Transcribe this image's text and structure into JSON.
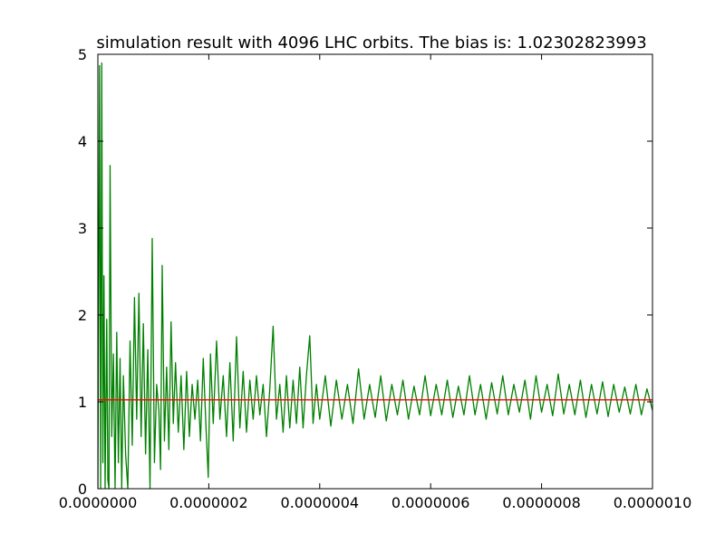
{
  "chart_data": {
    "type": "line",
    "title": "simulation result with 4096 LHC orbits. The bias is: 1.02302823993",
    "xlabel": "",
    "ylabel": "",
    "xlim": [
      0,
      1e-06
    ],
    "ylim": [
      0,
      5
    ],
    "grid": false,
    "legend": "none",
    "x_ticks": [
      0,
      2e-07,
      4e-07,
      6e-07,
      8e-07,
      1e-06
    ],
    "x_tick_labels": [
      "0.0000000",
      "0.0000002",
      "0.0000004",
      "0.0000006",
      "0.0000008",
      "0.0000010"
    ],
    "y_ticks": [
      0,
      1,
      2,
      3,
      4,
      5
    ],
    "y_tick_labels": [
      "0",
      "1",
      "2",
      "3",
      "4",
      "5"
    ],
    "series": [
      {
        "color": "#008000",
        "points": [
          [
            0.0,
            0.0
          ],
          [
            3e-09,
            4.87
          ],
          [
            5e-09,
            0.0
          ],
          [
            7e-09,
            4.9
          ],
          [
            9e-09,
            0.3
          ],
          [
            1.1e-08,
            2.45
          ],
          [
            1.3e-08,
            0.0
          ],
          [
            1.6e-08,
            1.95
          ],
          [
            1.8e-08,
            0.1
          ],
          [
            2e-08,
            0.0
          ],
          [
            2.2e-08,
            3.72
          ],
          [
            2.5e-08,
            0.6
          ],
          [
            2.8e-08,
            1.55
          ],
          [
            3.1e-08,
            0.0
          ],
          [
            3.4e-08,
            1.8
          ],
          [
            3.7e-08,
            0.3
          ],
          [
            4e-08,
            1.5
          ],
          [
            4.3e-08,
            0.0
          ],
          [
            4.6e-08,
            1.3
          ],
          [
            5e-08,
            0.4
          ],
          [
            5.4e-08,
            0.0
          ],
          [
            5.8e-08,
            1.7
          ],
          [
            6.2e-08,
            0.5
          ],
          [
            6.6e-08,
            2.2
          ],
          [
            7e-08,
            0.8
          ],
          [
            7.4e-08,
            2.25
          ],
          [
            7.8e-08,
            0.6
          ],
          [
            8.2e-08,
            1.9
          ],
          [
            8.6e-08,
            0.4
          ],
          [
            9e-08,
            1.6
          ],
          [
            9.4e-08,
            0.0
          ],
          [
            9.8e-08,
            2.88
          ],
          [
            1.02e-07,
            0.3
          ],
          [
            1.06e-07,
            1.2
          ],
          [
            1.1e-07,
            0.9
          ],
          [
            1.13e-07,
            0.22
          ],
          [
            1.16e-07,
            2.57
          ],
          [
            1.2e-07,
            0.55
          ],
          [
            1.24e-07,
            1.4
          ],
          [
            1.28e-07,
            0.45
          ],
          [
            1.32e-07,
            1.92
          ],
          [
            1.36e-07,
            0.75
          ],
          [
            1.4e-07,
            1.45
          ],
          [
            1.45e-07,
            0.65
          ],
          [
            1.5e-07,
            1.3
          ],
          [
            1.55e-07,
            0.45
          ],
          [
            1.6e-07,
            1.35
          ],
          [
            1.65e-07,
            0.6
          ],
          [
            1.7e-07,
            1.2
          ],
          [
            1.75e-07,
            0.8
          ],
          [
            1.8e-07,
            1.25
          ],
          [
            1.85e-07,
            0.55
          ],
          [
            1.9e-07,
            1.5
          ],
          [
            1.95e-07,
            0.7
          ],
          [
            1.99e-07,
            0.13
          ],
          [
            2.03e-07,
            1.55
          ],
          [
            2.08e-07,
            0.75
          ],
          [
            2.14e-07,
            1.7
          ],
          [
            2.2e-07,
            0.8
          ],
          [
            2.26e-07,
            1.3
          ],
          [
            2.32e-07,
            0.6
          ],
          [
            2.38e-07,
            1.45
          ],
          [
            2.44e-07,
            0.55
          ],
          [
            2.5e-07,
            1.75
          ],
          [
            2.56e-07,
            0.7
          ],
          [
            2.62e-07,
            1.35
          ],
          [
            2.68e-07,
            0.65
          ],
          [
            2.74e-07,
            1.25
          ],
          [
            2.8e-07,
            0.8
          ],
          [
            2.86e-07,
            1.3
          ],
          [
            2.92e-07,
            0.85
          ],
          [
            2.98e-07,
            1.2
          ],
          [
            3.04e-07,
            0.6
          ],
          [
            3.1e-07,
            1.15
          ],
          [
            3.16e-07,
            1.87
          ],
          [
            3.22e-07,
            0.8
          ],
          [
            3.28e-07,
            1.2
          ],
          [
            3.34e-07,
            0.65
          ],
          [
            3.4e-07,
            1.3
          ],
          [
            3.46e-07,
            0.7
          ],
          [
            3.52e-07,
            1.25
          ],
          [
            3.58e-07,
            0.75
          ],
          [
            3.64e-07,
            1.4
          ],
          [
            3.7e-07,
            0.7
          ],
          [
            3.76e-07,
            1.3
          ],
          [
            3.82e-07,
            1.76
          ],
          [
            3.88e-07,
            0.75
          ],
          [
            3.94e-07,
            1.2
          ],
          [
            4e-07,
            0.8
          ],
          [
            4.1e-07,
            1.3
          ],
          [
            4.2e-07,
            0.72
          ],
          [
            4.3e-07,
            1.25
          ],
          [
            4.4e-07,
            0.8
          ],
          [
            4.5e-07,
            1.2
          ],
          [
            4.6e-07,
            0.75
          ],
          [
            4.7e-07,
            1.38
          ],
          [
            4.8e-07,
            0.8
          ],
          [
            4.9e-07,
            1.2
          ],
          [
            5e-07,
            0.82
          ],
          [
            5.1e-07,
            1.3
          ],
          [
            5.2e-07,
            0.78
          ],
          [
            5.3e-07,
            1.2
          ],
          [
            5.4e-07,
            0.85
          ],
          [
            5.5e-07,
            1.25
          ],
          [
            5.6e-07,
            0.8
          ],
          [
            5.7e-07,
            1.18
          ],
          [
            5.8e-07,
            0.85
          ],
          [
            5.9e-07,
            1.3
          ],
          [
            6e-07,
            0.84
          ],
          [
            6.1e-07,
            1.2
          ],
          [
            6.2e-07,
            0.85
          ],
          [
            6.3e-07,
            1.25
          ],
          [
            6.4e-07,
            0.82
          ],
          [
            6.5e-07,
            1.18
          ],
          [
            6.6e-07,
            0.85
          ],
          [
            6.7e-07,
            1.3
          ],
          [
            6.8e-07,
            0.85
          ],
          [
            6.9e-07,
            1.2
          ],
          [
            7e-07,
            0.8
          ],
          [
            7.1e-07,
            1.22
          ],
          [
            7.2e-07,
            0.86
          ],
          [
            7.3e-07,
            1.3
          ],
          [
            7.4e-07,
            0.85
          ],
          [
            7.5e-07,
            1.2
          ],
          [
            7.6e-07,
            0.88
          ],
          [
            7.7e-07,
            1.25
          ],
          [
            7.8e-07,
            0.8
          ],
          [
            7.9e-07,
            1.3
          ],
          [
            8e-07,
            0.88
          ],
          [
            8.1e-07,
            1.2
          ],
          [
            8.2e-07,
            0.84
          ],
          [
            8.3e-07,
            1.32
          ],
          [
            8.4e-07,
            0.86
          ],
          [
            8.5e-07,
            1.2
          ],
          [
            8.6e-07,
            0.85
          ],
          [
            8.7e-07,
            1.25
          ],
          [
            8.8e-07,
            0.82
          ],
          [
            8.9e-07,
            1.2
          ],
          [
            9e-07,
            0.86
          ],
          [
            9.1e-07,
            1.23
          ],
          [
            9.2e-07,
            0.83
          ],
          [
            9.3e-07,
            1.2
          ],
          [
            9.4e-07,
            0.88
          ],
          [
            9.5e-07,
            1.17
          ],
          [
            9.6e-07,
            0.86
          ],
          [
            9.7e-07,
            1.2
          ],
          [
            9.8e-07,
            0.85
          ],
          [
            9.9e-07,
            1.15
          ],
          [
            1e-06,
            0.9
          ]
        ]
      },
      {
        "color": "#ff0000",
        "points": [
          [
            0,
            1.02302823993
          ],
          [
            1e-06,
            1.02302823993
          ]
        ]
      }
    ]
  }
}
